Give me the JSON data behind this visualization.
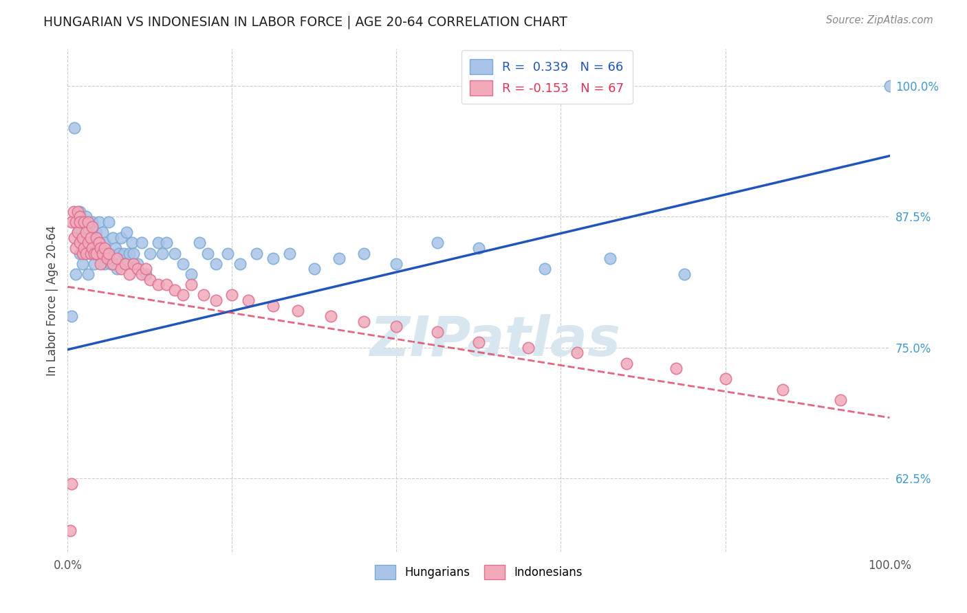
{
  "title": "HUNGARIAN VS INDONESIAN IN LABOR FORCE | AGE 20-64 CORRELATION CHART",
  "source_text": "Source: ZipAtlas.com",
  "ylabel": "In Labor Force | Age 20-64",
  "y_tick_labels_right": [
    "100.0%",
    "87.5%",
    "75.0%",
    "62.5%"
  ],
  "y_tick_positions": [
    1.0,
    0.875,
    0.75,
    0.625
  ],
  "xlim": [
    0.0,
    1.0
  ],
  "ylim": [
    0.555,
    1.035
  ],
  "legend_r_hungarian": "R =  0.339",
  "legend_n_hungarian": "N = 66",
  "legend_r_indonesian": "R = -0.153",
  "legend_n_indonesian": "N = 67",
  "hungarian_color": "#aac4e8",
  "indonesian_color": "#f2aabb",
  "hungarian_edge": "#7aaad4",
  "indonesian_edge": "#dd7090",
  "hungarian_line_color": "#2255bb",
  "indonesian_line_color": "#dd3355",
  "watermark": "ZIPatlas",
  "watermark_color": "#d8e6f0",
  "background_color": "#ffffff",
  "grid_color": "#cccccc",
  "hung_slope": 0.185,
  "hung_intercept": 0.748,
  "indo_slope": -0.125,
  "indo_intercept": 0.808,
  "hungarian_x": [
    0.005,
    0.008,
    0.01,
    0.012,
    0.015,
    0.015,
    0.018,
    0.02,
    0.022,
    0.022,
    0.025,
    0.025,
    0.028,
    0.03,
    0.03,
    0.032,
    0.035,
    0.035,
    0.038,
    0.04,
    0.04,
    0.042,
    0.045,
    0.045,
    0.048,
    0.05,
    0.052,
    0.055,
    0.058,
    0.06,
    0.062,
    0.065,
    0.068,
    0.07,
    0.072,
    0.075,
    0.078,
    0.08,
    0.085,
    0.09,
    0.095,
    0.1,
    0.11,
    0.115,
    0.12,
    0.13,
    0.14,
    0.15,
    0.16,
    0.17,
    0.18,
    0.195,
    0.21,
    0.23,
    0.25,
    0.27,
    0.3,
    0.33,
    0.36,
    0.4,
    0.45,
    0.5,
    0.58,
    0.66,
    0.75,
    1.0
  ],
  "hungarian_y": [
    0.78,
    0.96,
    0.82,
    0.86,
    0.84,
    0.88,
    0.83,
    0.87,
    0.85,
    0.875,
    0.82,
    0.86,
    0.84,
    0.87,
    0.85,
    0.83,
    0.86,
    0.84,
    0.87,
    0.84,
    0.85,
    0.86,
    0.83,
    0.85,
    0.84,
    0.87,
    0.83,
    0.855,
    0.845,
    0.825,
    0.84,
    0.855,
    0.84,
    0.83,
    0.86,
    0.84,
    0.85,
    0.84,
    0.83,
    0.85,
    0.82,
    0.84,
    0.85,
    0.84,
    0.85,
    0.84,
    0.83,
    0.82,
    0.85,
    0.84,
    0.83,
    0.84,
    0.83,
    0.84,
    0.835,
    0.84,
    0.825,
    0.835,
    0.84,
    0.83,
    0.85,
    0.845,
    0.825,
    0.835,
    0.82,
    1.0
  ],
  "indonesian_x": [
    0.003,
    0.005,
    0.005,
    0.007,
    0.008,
    0.01,
    0.01,
    0.012,
    0.012,
    0.015,
    0.015,
    0.015,
    0.018,
    0.018,
    0.02,
    0.02,
    0.022,
    0.022,
    0.025,
    0.025,
    0.028,
    0.028,
    0.03,
    0.03,
    0.032,
    0.035,
    0.035,
    0.038,
    0.04,
    0.04,
    0.042,
    0.045,
    0.048,
    0.05,
    0.055,
    0.06,
    0.065,
    0.07,
    0.075,
    0.08,
    0.085,
    0.09,
    0.095,
    0.1,
    0.11,
    0.12,
    0.13,
    0.14,
    0.15,
    0.165,
    0.18,
    0.2,
    0.22,
    0.25,
    0.28,
    0.32,
    0.36,
    0.4,
    0.45,
    0.5,
    0.56,
    0.62,
    0.68,
    0.74,
    0.8,
    0.87,
    0.94
  ],
  "indonesian_y": [
    0.575,
    0.62,
    0.87,
    0.88,
    0.855,
    0.87,
    0.845,
    0.88,
    0.86,
    0.875,
    0.85,
    0.87,
    0.855,
    0.84,
    0.87,
    0.845,
    0.86,
    0.84,
    0.87,
    0.85,
    0.855,
    0.84,
    0.865,
    0.845,
    0.84,
    0.855,
    0.84,
    0.85,
    0.845,
    0.83,
    0.84,
    0.845,
    0.835,
    0.84,
    0.83,
    0.835,
    0.825,
    0.83,
    0.82,
    0.83,
    0.825,
    0.82,
    0.825,
    0.815,
    0.81,
    0.81,
    0.805,
    0.8,
    0.81,
    0.8,
    0.795,
    0.8,
    0.795,
    0.79,
    0.785,
    0.78,
    0.775,
    0.77,
    0.765,
    0.755,
    0.75,
    0.745,
    0.735,
    0.73,
    0.72,
    0.71,
    0.7
  ]
}
